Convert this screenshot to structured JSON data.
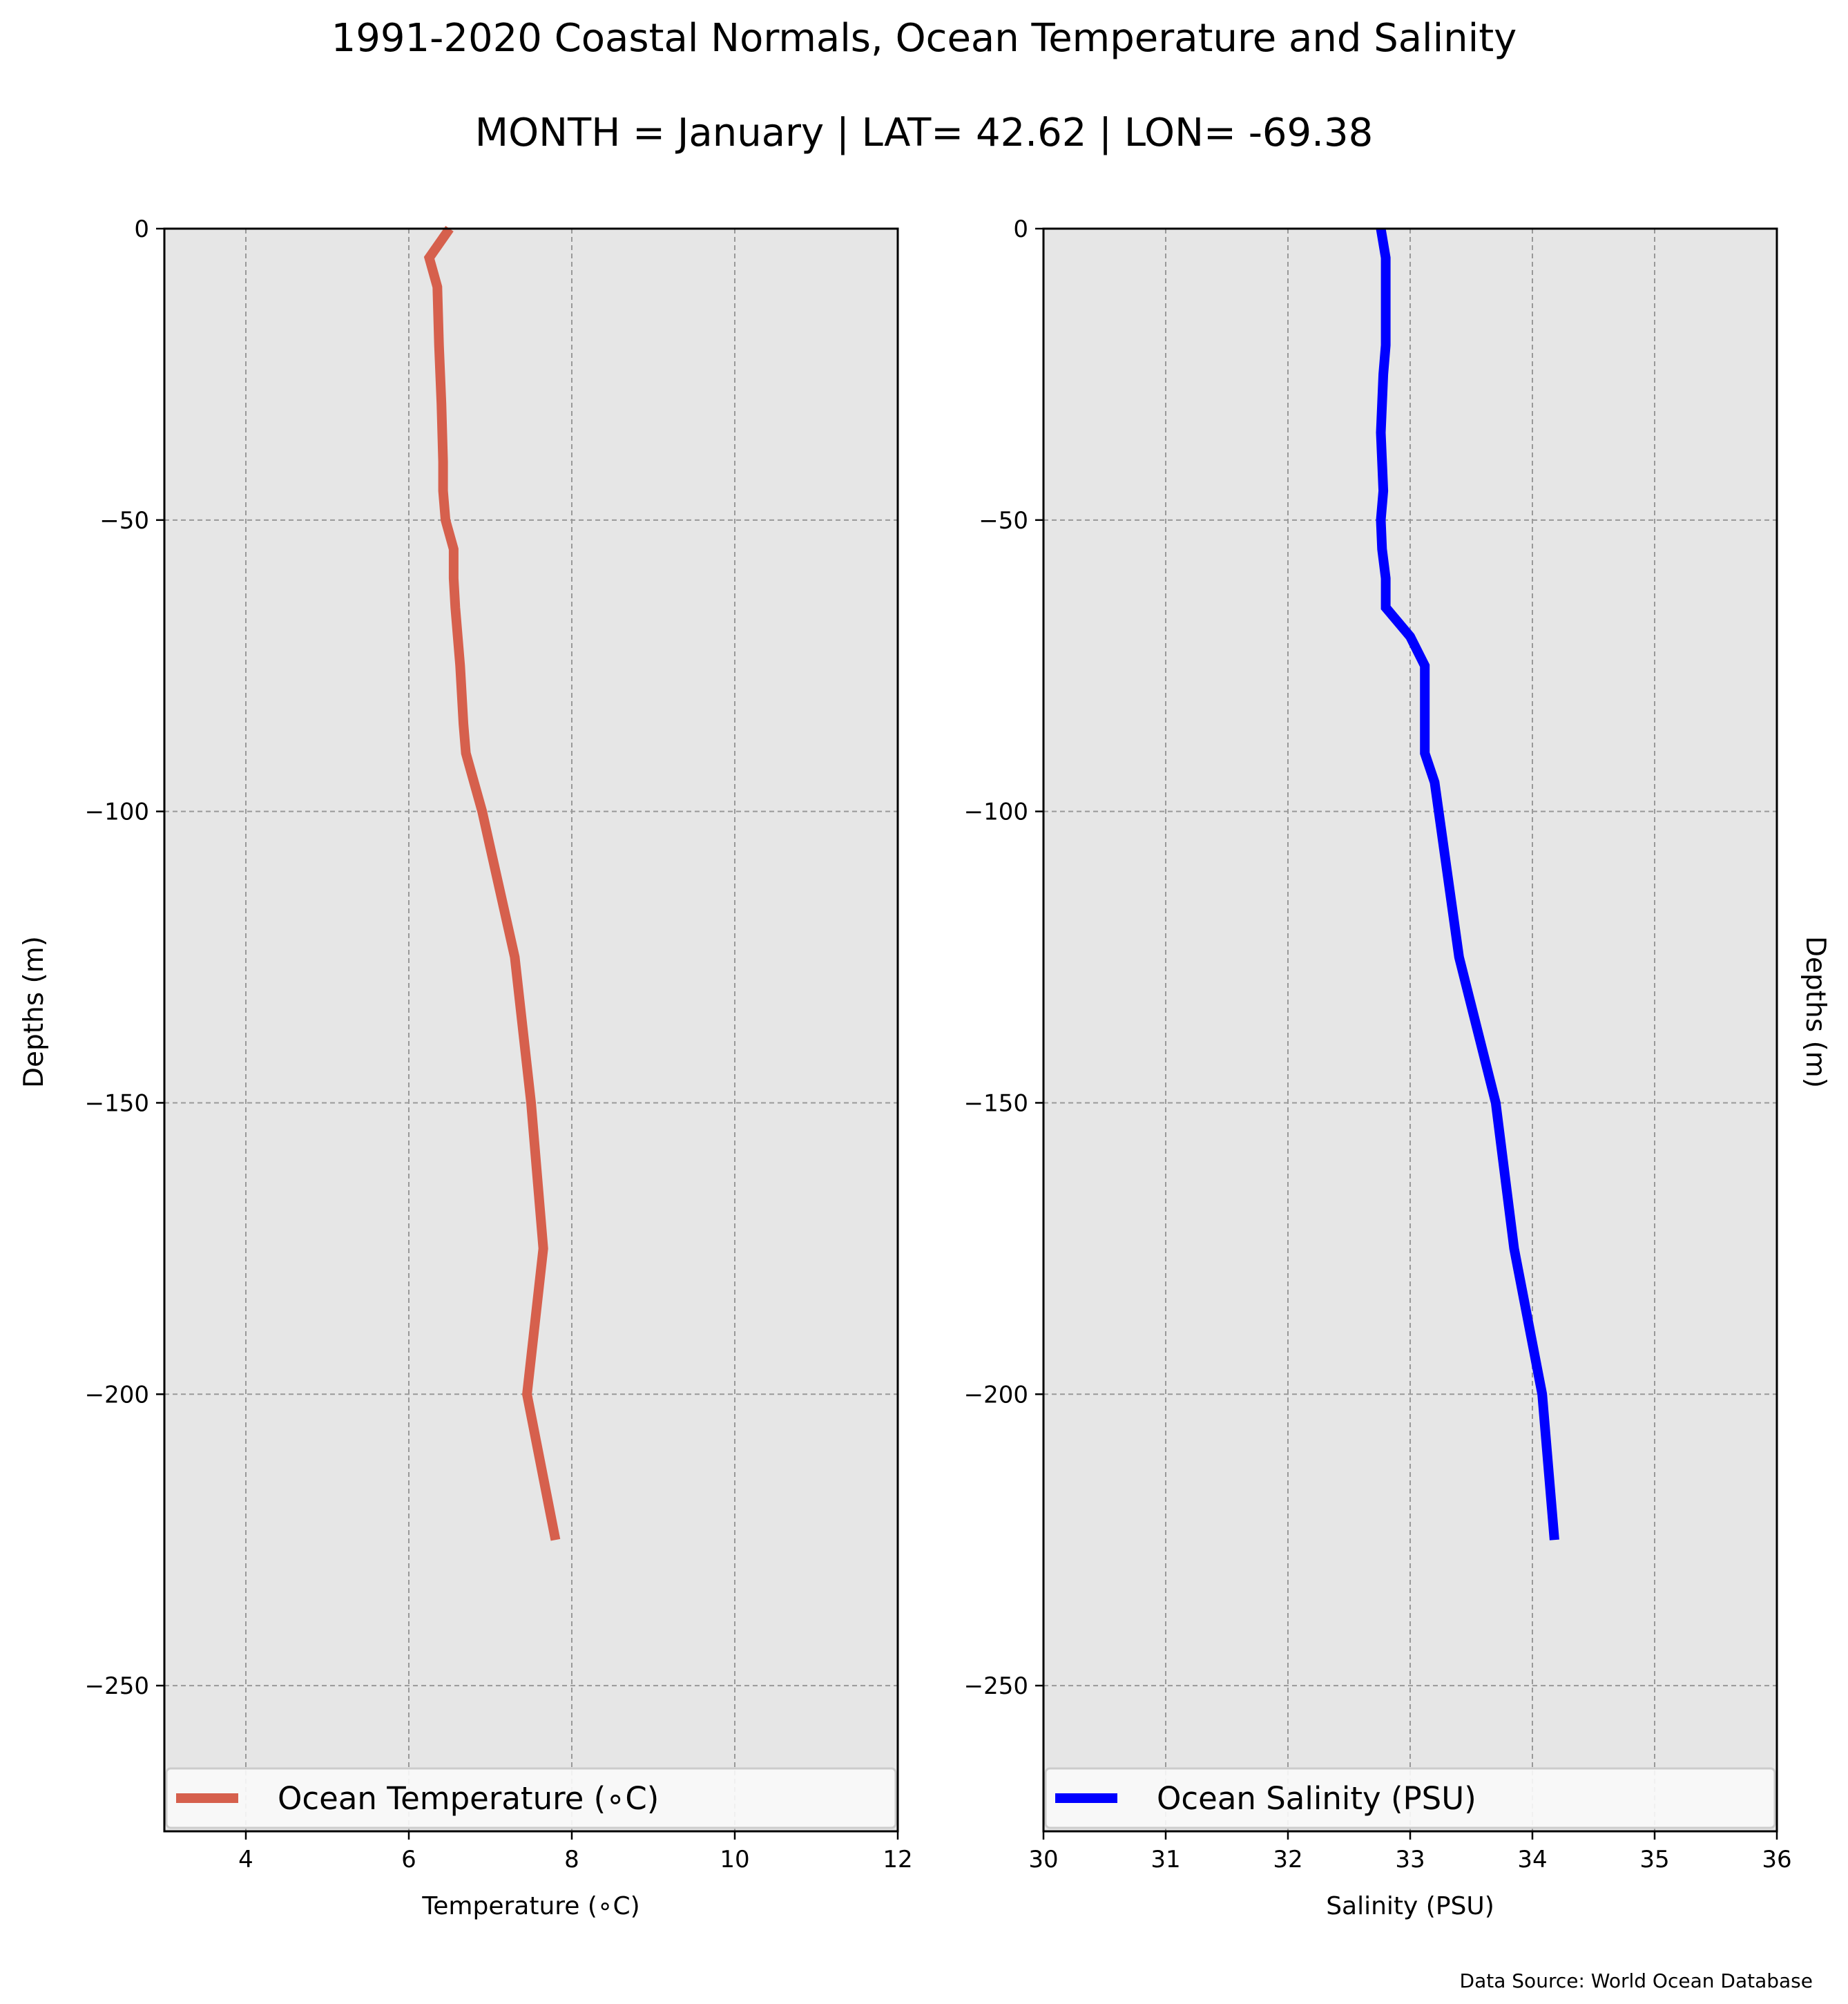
{
  "title": "1991-2020 Coastal Normals, Ocean Temperature and Salinity",
  "subtitle": "MONTH = January | LAT= 42.62 | LON= -69.38",
  "source": "Data Source: World Ocean Database",
  "colors": {
    "panel_bg": "#e6e6e6",
    "grid": "#999999",
    "temperature": "#d6604d",
    "salinity": "#0000ff"
  },
  "chart_data": [
    {
      "type": "line",
      "xlabel": "Temperature (∘C)",
      "ylabel": "Depths (m)",
      "xlim": [
        3,
        12
      ],
      "ylim": [
        -275,
        0
      ],
      "xticks": [
        4,
        6,
        8,
        10,
        12
      ],
      "yticks": [
        0,
        -50,
        -100,
        -150,
        -200,
        -250
      ],
      "xtick_labels": [
        "4",
        "6",
        "8",
        "10",
        "12"
      ],
      "ytick_labels": [
        "0",
        "−50",
        "−100",
        "−150",
        "−200",
        "−250"
      ],
      "grid": true,
      "legend_position": "bottom",
      "series": [
        {
          "name": "Ocean Temperature (∘C)",
          "color": "#d6604d",
          "x": [
            6.5,
            6.25,
            6.35,
            6.37,
            6.4,
            6.42,
            6.42,
            6.45,
            6.55,
            6.55,
            6.57,
            6.63,
            6.67,
            6.7,
            6.9,
            7.3,
            7.5,
            7.65,
            7.45,
            7.8
          ],
          "y": [
            0,
            -5,
            -10,
            -20,
            -30,
            -40,
            -45,
            -50,
            -55,
            -60,
            -65,
            -75,
            -85,
            -90,
            -100,
            -125,
            -150,
            -175,
            -200,
            -225
          ]
        }
      ]
    },
    {
      "type": "line",
      "xlabel": "Salinity (PSU)",
      "ylabel": "Depths (m)",
      "xlim": [
        30,
        36
      ],
      "ylim": [
        -275,
        0
      ],
      "xticks": [
        30,
        31,
        32,
        33,
        34,
        35,
        36
      ],
      "yticks": [
        0,
        -50,
        -100,
        -150,
        -200,
        -250
      ],
      "xtick_labels": [
        "30",
        "31",
        "32",
        "33",
        "34",
        "35",
        "36"
      ],
      "ytick_labels": [
        "0",
        "−50",
        "−100",
        "−150",
        "−200",
        "−250"
      ],
      "grid": true,
      "legend_position": "bottom",
      "series": [
        {
          "name": "Ocean Salinity (PSU)",
          "color": "#0000ff",
          "x": [
            32.76,
            32.8,
            32.8,
            32.8,
            32.78,
            32.77,
            32.76,
            32.78,
            32.76,
            32.77,
            32.8,
            32.8,
            33.0,
            33.12,
            33.12,
            33.12,
            33.2,
            33.4,
            33.7,
            33.85,
            34.08,
            34.18
          ],
          "y": [
            0,
            -5,
            -10,
            -20,
            -25,
            -30,
            -35,
            -45,
            -50,
            -55,
            -60,
            -65,
            -70,
            -75,
            -80,
            -90,
            -95,
            -125,
            -150,
            -175,
            -200,
            -225
          ]
        }
      ]
    }
  ]
}
